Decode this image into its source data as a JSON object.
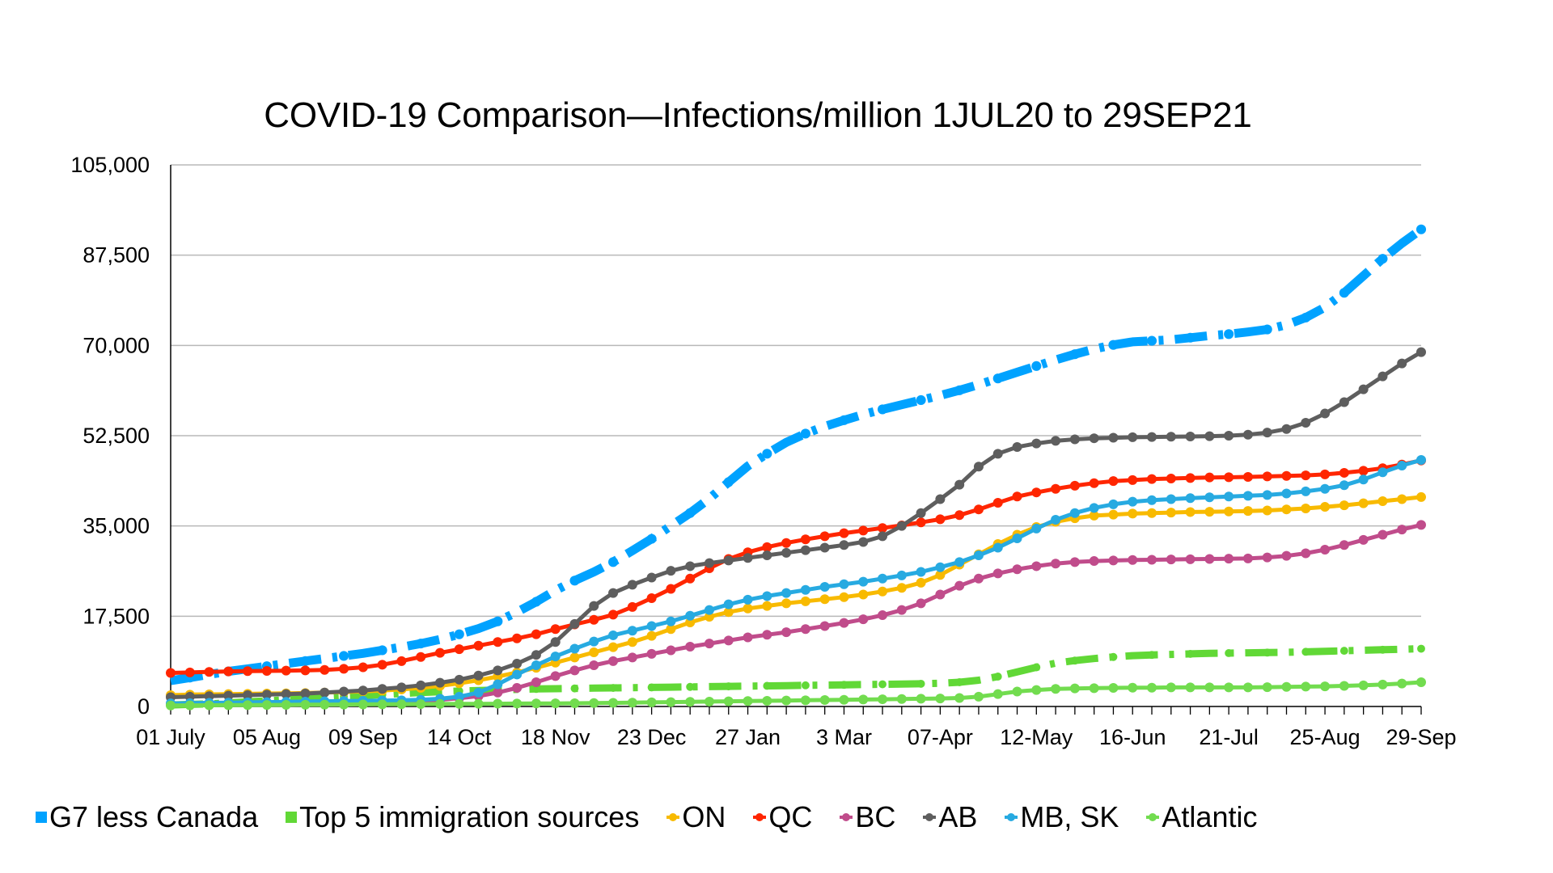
{
  "chart_data": {
    "type": "line",
    "title": "COVID-19 Comparison—Infections/million 1JUL20 to 29SEP21",
    "xlabel": "",
    "ylabel": "",
    "ylim": [
      0,
      105000
    ],
    "yticks": [
      "0",
      "17,500",
      "35,000",
      "52,500",
      "70,000",
      "87,500",
      "105,000"
    ],
    "ytick_values": [
      0,
      17500,
      35000,
      52500,
      70000,
      87500,
      105000
    ],
    "grid": true,
    "legend_position": "bottom",
    "x_count": 66,
    "x_interval": "weekly",
    "xtick_labels": [
      "01 July",
      "05 Aug",
      "09 Sep",
      "14 Oct",
      "18 Nov",
      "23 Dec",
      "27 Jan",
      "3 Mar",
      "07-Apr",
      "12-May",
      "16-Jun",
      "21-Jul",
      "25-Aug",
      "29-Sep"
    ],
    "xtick_label_every": 5,
    "series": [
      {
        "name": "G7 less Canada",
        "color": "#00A2FF",
        "style": "dashdot",
        "marker": "square-legend",
        "values": [
          5000,
          5600,
          6200,
          6800,
          7300,
          7800,
          8300,
          8800,
          9300,
          9800,
          10300,
          10900,
          11500,
          12200,
          13000,
          14000,
          15100,
          16500,
          18300,
          20300,
          22500,
          24400,
          26100,
          28000,
          30200,
          32500,
          35000,
          37500,
          40300,
          43500,
          46600,
          49000,
          51200,
          52900,
          54300,
          55500,
          56600,
          57600,
          58500,
          59400,
          60300,
          61300,
          62400,
          63600,
          64800,
          66000,
          67200,
          68300,
          69300,
          70100,
          70700,
          70900,
          71100,
          71500,
          71900,
          72200,
          72600,
          73100,
          74000,
          75400,
          77400,
          80200,
          83500,
          86800,
          89800,
          92500
        ]
      },
      {
        "name": "Top 5 immigration sources",
        "color": "#61D836",
        "style": "dashdot",
        "marker": "square-legend",
        "values": [
          300,
          400,
          500,
          700,
          900,
          1100,
          1300,
          1500,
          1700,
          1900,
          2100,
          2300,
          2500,
          2700,
          2850,
          3000,
          3100,
          3200,
          3300,
          3400,
          3450,
          3500,
          3550,
          3600,
          3650,
          3700,
          3750,
          3800,
          3850,
          3900,
          3950,
          4000,
          4050,
          4100,
          4150,
          4200,
          4250,
          4300,
          4350,
          4400,
          4500,
          4700,
          5100,
          5800,
          6700,
          7600,
          8400,
          8900,
          9300,
          9600,
          9850,
          10000,
          10100,
          10200,
          10300,
          10350,
          10400,
          10450,
          10500,
          10600,
          10700,
          10800,
          10900,
          11000,
          11100,
          11200
        ]
      },
      {
        "name": "ON",
        "color": "#F8BA00",
        "style": "solid",
        "marker": "circle",
        "values": [
          2200,
          2300,
          2350,
          2400,
          2450,
          2500,
          2550,
          2600,
          2700,
          2800,
          2950,
          3100,
          3300,
          3600,
          4000,
          4500,
          5100,
          5800,
          6600,
          7500,
          8500,
          9500,
          10500,
          11500,
          12500,
          13700,
          15000,
          16300,
          17400,
          18300,
          19000,
          19500,
          20000,
          20400,
          20800,
          21200,
          21700,
          22300,
          23000,
          24000,
          25500,
          27500,
          29500,
          31500,
          33300,
          34800,
          35800,
          36500,
          37000,
          37200,
          37400,
          37500,
          37600,
          37700,
          37750,
          37800,
          37900,
          38000,
          38200,
          38400,
          38700,
          39000,
          39400,
          39800,
          40200,
          40600
        ]
      },
      {
        "name": "QC",
        "color": "#FF2600",
        "style": "solid",
        "marker": "circle",
        "values": [
          6500,
          6600,
          6700,
          6800,
          6850,
          6900,
          6950,
          7000,
          7100,
          7300,
          7600,
          8100,
          8800,
          9600,
          10400,
          11100,
          11800,
          12500,
          13200,
          14000,
          15000,
          15900,
          16800,
          17800,
          19300,
          21000,
          22800,
          24800,
          26800,
          28600,
          29900,
          30900,
          31700,
          32400,
          33000,
          33600,
          34100,
          34600,
          35100,
          35700,
          36300,
          37100,
          38200,
          39500,
          40700,
          41500,
          42200,
          42800,
          43300,
          43700,
          43900,
          44100,
          44200,
          44300,
          44400,
          44450,
          44500,
          44600,
          44700,
          44800,
          45000,
          45300,
          45700,
          46200,
          46900,
          47700
        ]
      },
      {
        "name": "BC",
        "color": "#C04C8B",
        "style": "solid",
        "marker": "circle",
        "values": [
          400,
          450,
          500,
          550,
          600,
          650,
          700,
          750,
          800,
          850,
          900,
          950,
          1000,
          1100,
          1300,
          1600,
          2000,
          2700,
          3600,
          4700,
          5900,
          7000,
          8000,
          8800,
          9500,
          10200,
          10900,
          11600,
          12200,
          12800,
          13400,
          13900,
          14400,
          15000,
          15600,
          16200,
          16900,
          17700,
          18700,
          20000,
          21700,
          23400,
          24800,
          25800,
          26600,
          27200,
          27700,
          28000,
          28200,
          28300,
          28400,
          28450,
          28500,
          28550,
          28600,
          28650,
          28700,
          28900,
          29200,
          29700,
          30400,
          31300,
          32300,
          33300,
          34300,
          35200
        ]
      },
      {
        "name": "AB",
        "color": "#5E5E5E",
        "style": "solid",
        "marker": "circle",
        "values": [
          1800,
          1900,
          2000,
          2100,
          2200,
          2300,
          2400,
          2500,
          2700,
          2900,
          3100,
          3400,
          3700,
          4100,
          4600,
          5200,
          6000,
          7000,
          8300,
          10000,
          12500,
          16000,
          19500,
          22000,
          23600,
          25000,
          26300,
          27200,
          27800,
          28300,
          28800,
          29300,
          29800,
          30300,
          30800,
          31300,
          31900,
          33000,
          35000,
          37500,
          40200,
          43000,
          46500,
          49000,
          50300,
          51000,
          51500,
          51800,
          52000,
          52100,
          52200,
          52250,
          52300,
          52350,
          52400,
          52500,
          52700,
          53100,
          53800,
          55000,
          56800,
          59000,
          61500,
          64000,
          66500,
          68700
        ]
      },
      {
        "name": "MB, SK",
        "color": "#27AAE1",
        "style": "solid",
        "marker": "circle",
        "values": [
          600,
          650,
          700,
          750,
          800,
          850,
          900,
          950,
          1000,
          1050,
          1100,
          1150,
          1200,
          1300,
          1500,
          1900,
          2700,
          4300,
          6200,
          8000,
          9700,
          11200,
          12600,
          13800,
          14700,
          15600,
          16500,
          17600,
          18700,
          19800,
          20700,
          21400,
          22000,
          22600,
          23200,
          23700,
          24200,
          24800,
          25400,
          26100,
          27000,
          28000,
          29300,
          30800,
          32600,
          34500,
          36200,
          37500,
          38500,
          39200,
          39700,
          40000,
          40200,
          40400,
          40550,
          40700,
          40850,
          41000,
          41300,
          41700,
          42200,
          42900,
          44000,
          45400,
          46700,
          47800
        ]
      },
      {
        "name": "Atlantic",
        "color": "#72DC4F",
        "style": "solid",
        "marker": "circle",
        "values": [
          200,
          220,
          240,
          260,
          280,
          300,
          320,
          340,
          360,
          380,
          400,
          420,
          440,
          460,
          480,
          500,
          520,
          540,
          560,
          580,
          600,
          630,
          660,
          700,
          750,
          800,
          850,
          900,
          950,
          1000,
          1050,
          1100,
          1150,
          1200,
          1250,
          1300,
          1350,
          1400,
          1450,
          1500,
          1550,
          1650,
          1900,
          2400,
          2900,
          3200,
          3400,
          3500,
          3550,
          3600,
          3650,
          3650,
          3700,
          3700,
          3700,
          3700,
          3700,
          3750,
          3800,
          3850,
          3900,
          4000,
          4100,
          4250,
          4450,
          4700
        ]
      }
    ]
  }
}
